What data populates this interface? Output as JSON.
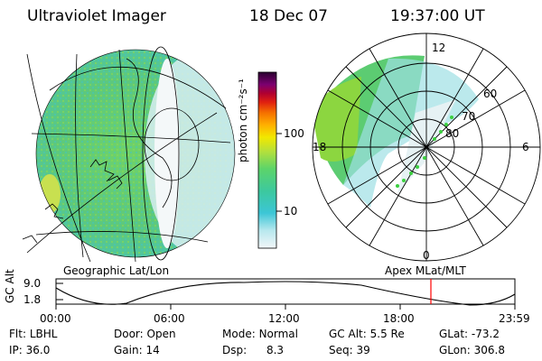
{
  "header": {
    "instrument": "Ultraviolet Imager",
    "date": "18 Dec 07",
    "time": "19:37:00 UT"
  },
  "colorbar": {
    "unit_label": "photon cm⁻²s⁻¹",
    "ticks": [
      "100",
      "10"
    ]
  },
  "geo_panel": {
    "label": "Geographic Lat/Lon"
  },
  "polar_panel": {
    "label": "Apex MLat/MLT",
    "mlt_labels": [
      "12",
      "18",
      "6",
      "0"
    ],
    "lat_labels": [
      "60",
      "70",
      "80"
    ]
  },
  "altitude_plot": {
    "ylabel": "GC Alt",
    "yticks": [
      "9.0",
      "1.8"
    ],
    "xticks": [
      "00:00",
      "06:00",
      "12:00",
      "18:00",
      "23:59"
    ],
    "marker_color": "#ff0000"
  },
  "status": {
    "row1": [
      {
        "label": "Flt:",
        "value": "LBHL"
      },
      {
        "label": "Door:",
        "value": "Open"
      },
      {
        "label": "Mode:",
        "value": "Normal"
      },
      {
        "label": "GC Alt:",
        "value": "5.5 Re"
      },
      {
        "label": "GLat:",
        "value": "-73.2"
      }
    ],
    "row2": [
      {
        "label": "IP:",
        "value": "36.0"
      },
      {
        "label": "Gain:",
        "value": "14"
      },
      {
        "label": "Dsp:",
        "value": "8.3"
      },
      {
        "label": "Seq:",
        "value": "39"
      },
      {
        "label": "GLon:",
        "value": "306.8"
      }
    ]
  }
}
